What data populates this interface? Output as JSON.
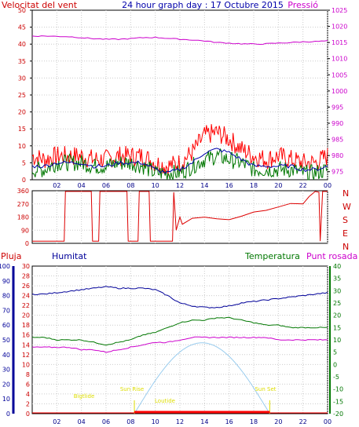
{
  "header": {
    "left": "Velocitat del vent",
    "center": "24 hour graph day : 17 Octubre 2015",
    "right": "Pressió"
  },
  "panel3_labels": {
    "rain": "Pluja",
    "humidity": "Humitat",
    "temperature": "Temperatura",
    "dewpoint": "Punt rosada"
  },
  "sun_labels": {
    "begin_civil": "Bigtlide",
    "sunrise": "Sun Rise",
    "transit": "Loutide",
    "sunset": "Sun Set"
  },
  "colors": {
    "wind": "#cc0000",
    "wind_gust": "#ff0000",
    "wind_avg": "#0000aa",
    "wind_green": "#007700",
    "pressure": "#cc00cc",
    "direction": "#dd0000",
    "humidity": "#000099",
    "temperature": "#007700",
    "dewpoint": "#cc00cc",
    "rain": "#ff0000",
    "sun": "#99ccee",
    "sun_labels": "#dddd00",
    "grid": "#cccccc",
    "axis_left_red": "#cc0000",
    "axis_right_mag": "#cc00cc",
    "axis_blue": "#000099",
    "axis_green": "#007700"
  },
  "chart_data": [
    {
      "type": "line",
      "id": "wind-pressure",
      "x_ticks": [
        "02",
        "04",
        "06",
        "08",
        "10",
        "12",
        "14",
        "16",
        "18",
        "20",
        "22",
        "00"
      ],
      "y_left_ticks": [
        0,
        5,
        10,
        15,
        20,
        25,
        30,
        35,
        40,
        45,
        50
      ],
      "y_left_range": [
        0,
        50
      ],
      "y_right_ticks": [
        975,
        980,
        985,
        990,
        995,
        1000,
        1005,
        1010,
        1015,
        1020,
        1025
      ],
      "y_right_range": [
        972.5,
        1025
      ],
      "hours": [
        0,
        1,
        2,
        3,
        4,
        5,
        6,
        7,
        8,
        9,
        10,
        11,
        12,
        13,
        14,
        15,
        16,
        17,
        18,
        19,
        20,
        21,
        22,
        23,
        24
      ],
      "series": [
        {
          "key": "gust",
          "values": [
            7,
            6,
            7,
            7,
            7,
            6,
            6,
            7,
            7,
            7,
            5,
            4,
            5,
            8,
            13,
            14,
            12,
            9,
            7,
            6,
            7,
            6,
            5,
            5,
            7
          ]
        },
        {
          "key": "avg",
          "values": [
            4,
            4,
            5,
            5,
            5,
            4,
            4,
            5,
            5,
            5,
            3,
            2,
            3,
            5,
            8,
            9,
            8,
            6,
            4,
            4,
            4,
            4,
            3,
            3,
            4
          ]
        },
        {
          "key": "green",
          "values": [
            3,
            3,
            5,
            5,
            5,
            4,
            4,
            5,
            5,
            4,
            2,
            2,
            2,
            4,
            6,
            7,
            6,
            5,
            3,
            3,
            3,
            3,
            2,
            2,
            3
          ]
        },
        {
          "key": "pressure",
          "values": [
            1017,
            1017,
            1016.9,
            1016.8,
            1016.5,
            1016.2,
            1016,
            1016,
            1016.2,
            1016.5,
            1016.6,
            1016.3,
            1016,
            1015.8,
            1015.5,
            1015,
            1014.8,
            1014.6,
            1014.5,
            1014.6,
            1014.8,
            1015,
            1015.2,
            1015.3,
            1015.5
          ]
        }
      ]
    },
    {
      "type": "line",
      "id": "wind-direction",
      "x_ticks": [
        "02",
        "04",
        "06",
        "08",
        "10",
        "12",
        "14",
        "16",
        "18",
        "20",
        "22",
        "00"
      ],
      "y_ticks": [
        0,
        90,
        180,
        270,
        360
      ],
      "y_range": [
        0,
        360
      ],
      "compass": [
        "N",
        "W",
        "S",
        "E",
        "N"
      ],
      "points": [
        [
          0,
          15
        ],
        [
          2,
          15
        ],
        [
          2.6,
          15
        ],
        [
          2.7,
          355
        ],
        [
          4.8,
          355
        ],
        [
          4.9,
          15
        ],
        [
          5.4,
          15
        ],
        [
          5.5,
          355
        ],
        [
          7.7,
          355
        ],
        [
          7.8,
          15
        ],
        [
          8.6,
          15
        ],
        [
          8.7,
          355
        ],
        [
          9.5,
          355
        ],
        [
          9.6,
          15
        ],
        [
          11.4,
          15
        ],
        [
          11.5,
          350
        ],
        [
          11.7,
          90
        ],
        [
          12,
          180
        ],
        [
          12.2,
          120
        ],
        [
          13,
          160
        ],
        [
          14,
          170
        ],
        [
          15,
          160
        ],
        [
          16,
          170
        ],
        [
          17,
          185
        ],
        [
          18,
          200
        ],
        [
          19,
          240
        ],
        [
          20,
          250
        ],
        [
          21,
          260
        ],
        [
          22,
          270
        ],
        [
          22.5,
          320
        ],
        [
          23,
          355
        ],
        [
          23.3,
          350
        ],
        [
          23.4,
          15
        ],
        [
          23.6,
          355
        ],
        [
          24,
          355
        ]
      ]
    },
    {
      "type": "line",
      "id": "temp-hum-rain",
      "x_ticks": [
        "02",
        "04",
        "06",
        "08",
        "10",
        "12",
        "14",
        "16",
        "18",
        "20",
        "22",
        "00"
      ],
      "rain_ticks": [
        0,
        5,
        10,
        15,
        20,
        25,
        30,
        35,
        40,
        45,
        50,
        55,
        60,
        65,
        70,
        75,
        80,
        85,
        90,
        95,
        100
      ],
      "rain_tick_labels": [
        0,
        2,
        4,
        6,
        8,
        10,
        12,
        14,
        16,
        18,
        20,
        22,
        24,
        26,
        28,
        30
      ],
      "humidity_ticks": [
        0,
        10,
        20,
        30,
        40,
        50,
        60,
        70,
        80,
        90,
        100
      ],
      "temp_ticks": [
        -20,
        -15,
        -10,
        -5,
        0,
        5,
        10,
        15,
        20,
        25,
        30,
        35,
        40
      ],
      "temp_range": [
        -20,
        40
      ],
      "hours": [
        0,
        1,
        2,
        3,
        4,
        5,
        6,
        7,
        8,
        9,
        10,
        11,
        12,
        13,
        14,
        15,
        16,
        17,
        18,
        19,
        20,
        21,
        22,
        23,
        24
      ],
      "humidity": [
        81,
        81,
        82,
        83,
        84,
        85,
        86,
        85,
        85,
        85,
        84,
        80,
        75,
        73,
        72,
        72,
        73,
        75,
        76,
        77,
        78,
        79,
        80,
        81,
        82
      ],
      "temperature": [
        11,
        11,
        10,
        10,
        10,
        9,
        8,
        9,
        10,
        12,
        13,
        15,
        17,
        18,
        18,
        19,
        19,
        18,
        17,
        16,
        16,
        15,
        15,
        15,
        15
      ],
      "dewpoint": [
        7,
        7,
        7,
        7,
        6,
        6,
        5,
        6,
        7,
        8,
        9,
        9,
        10,
        11,
        11,
        11,
        11,
        11,
        11,
        11,
        10,
        10,
        10,
        10,
        10
      ],
      "sun_elevation_max_deg": 35,
      "sunrise_hour": 8.3,
      "sunset_hour": 19.3,
      "rain_total": 0
    }
  ]
}
